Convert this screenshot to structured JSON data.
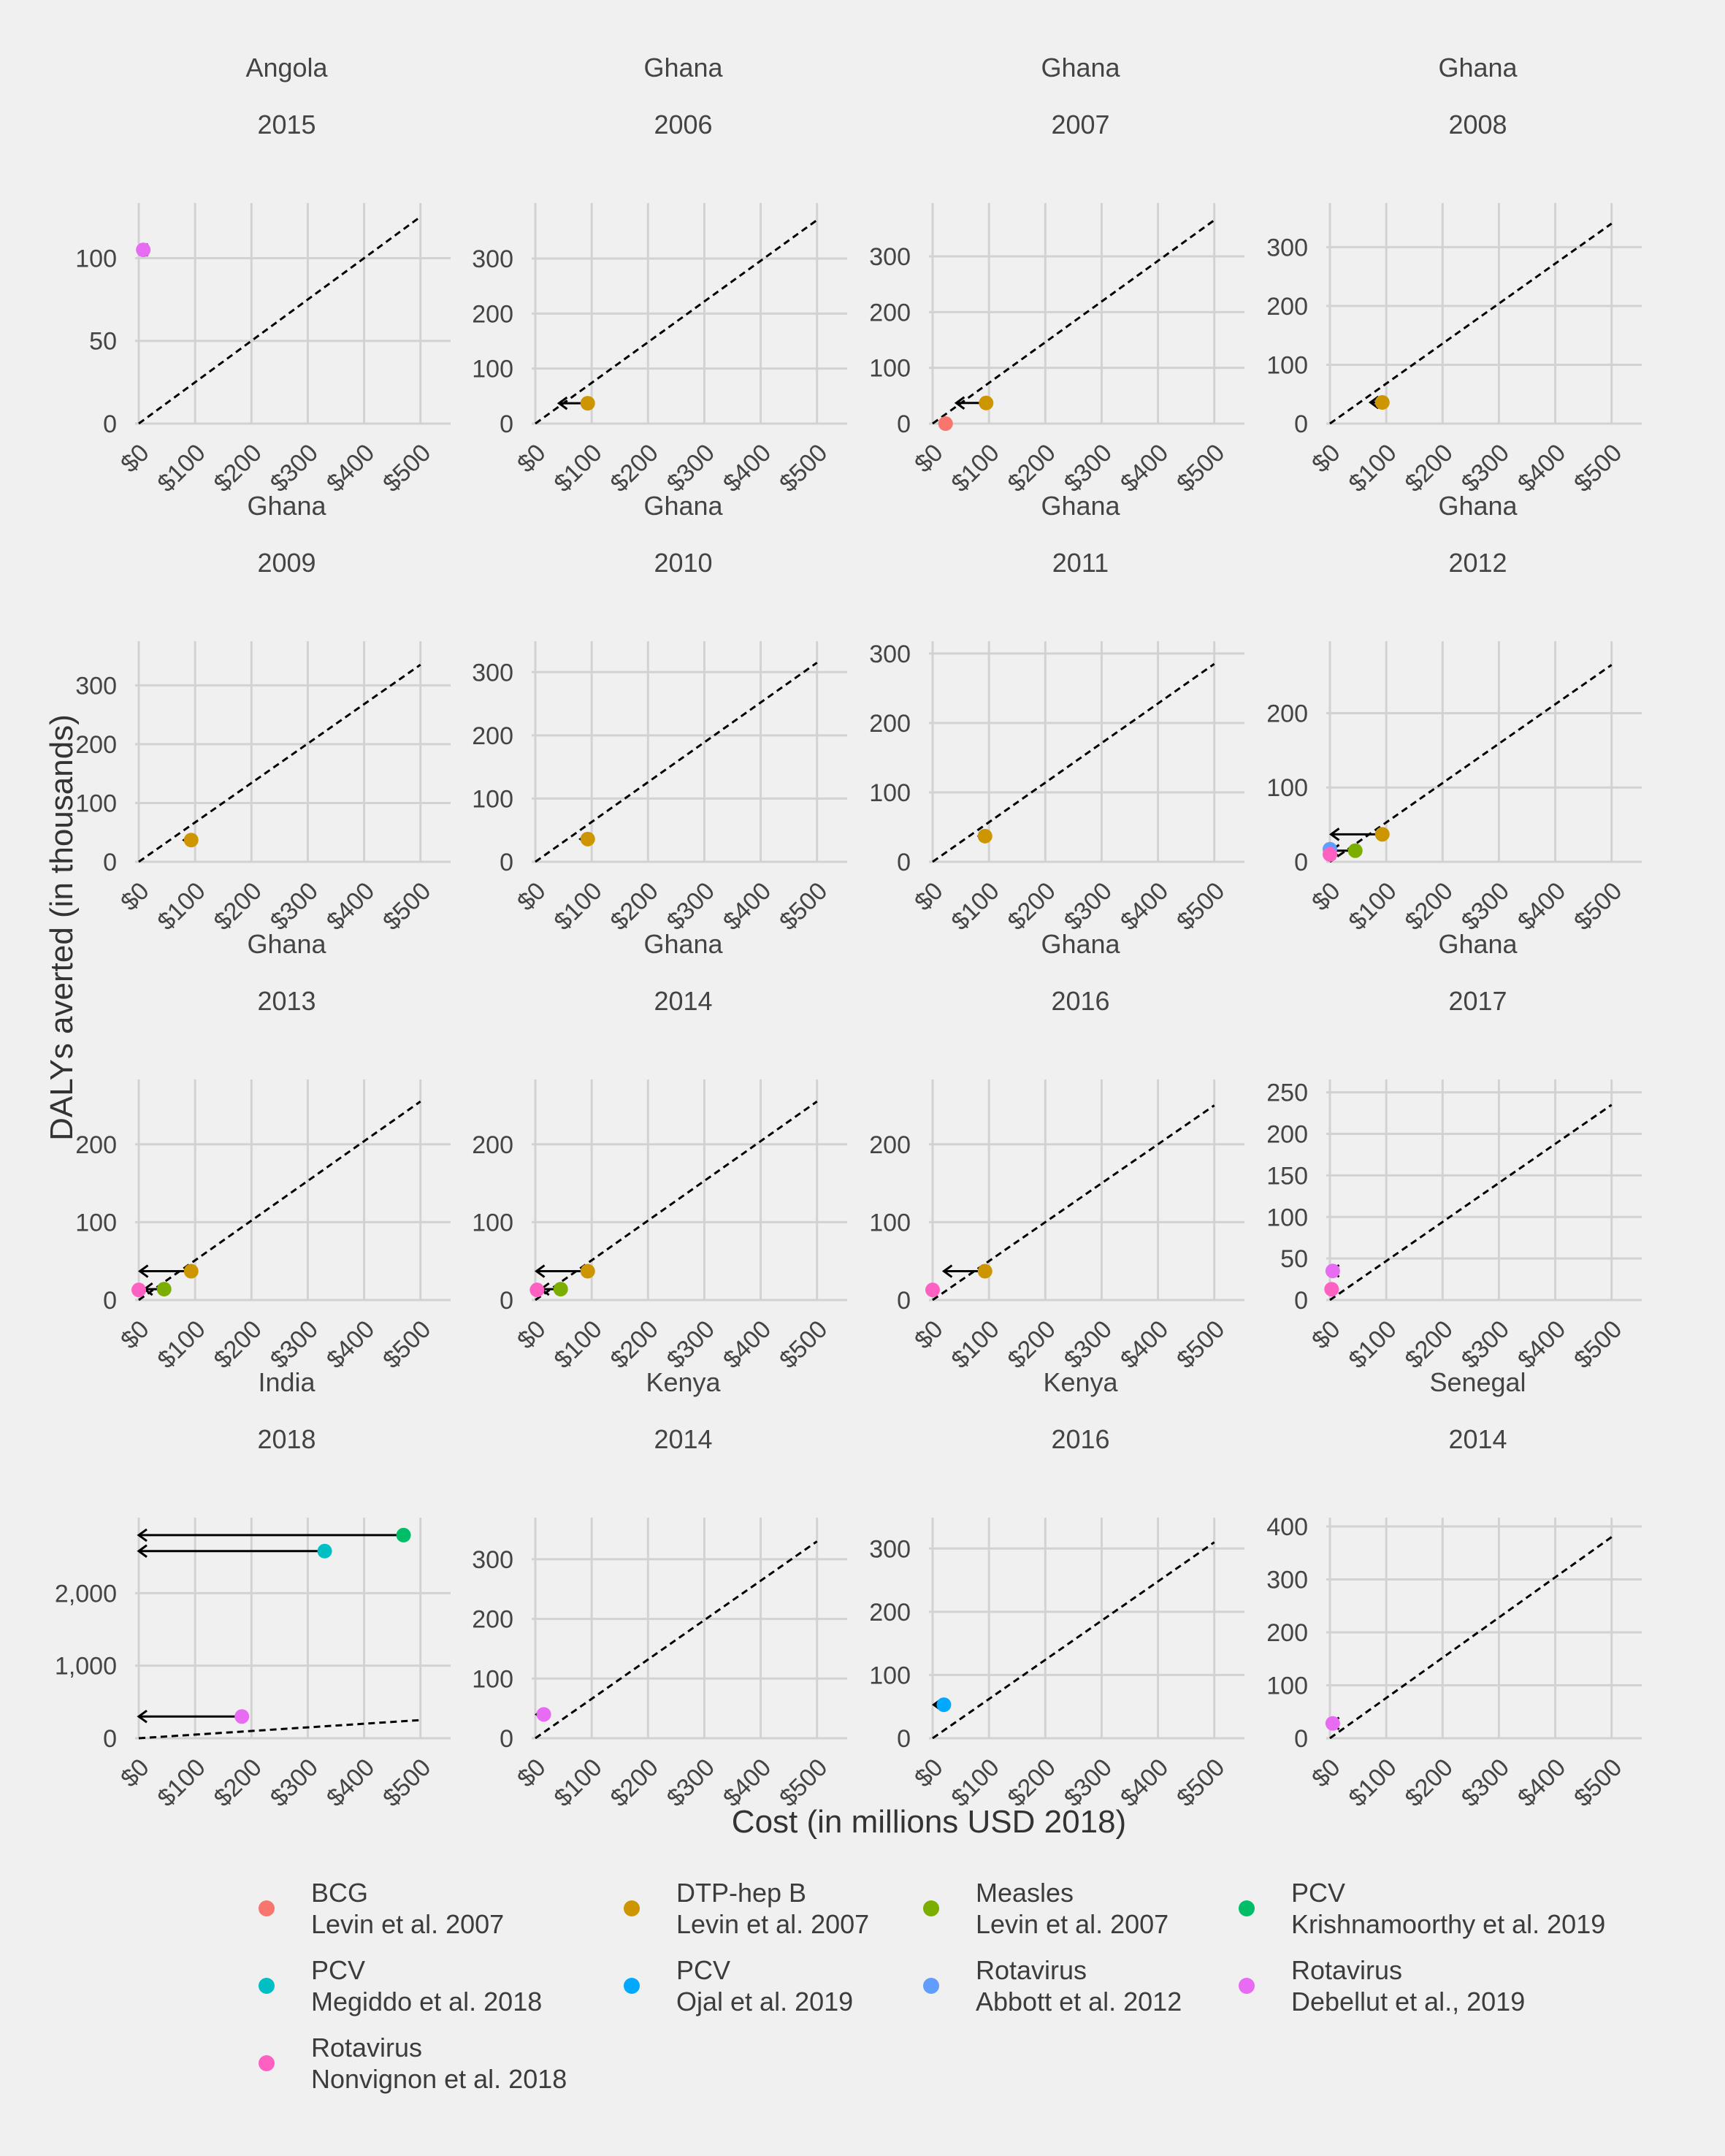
{
  "chart_data": {
    "type": "scatter",
    "xlabel": "Cost (in millions USD 2018)",
    "ylabel": "DALYs averted (in thousands)",
    "x_tick_labels": [
      "$0",
      "$100",
      "$200",
      "$300",
      "$400",
      "$500"
    ],
    "grid": true,
    "legend_position": "bottom",
    "series": [
      {
        "name": "BCG\nLevin et al. 2007",
        "color": "#F8766D"
      },
      {
        "name": "DTP-hep B\nLevin et al. 2007",
        "color": "#CD9600"
      },
      {
        "name": "Measles\nLevin et al. 2007",
        "color": "#7CAE00"
      },
      {
        "name": "PCV\nKrishnamoorthy et al. 2019",
        "color": "#00BE67"
      },
      {
        "name": "PCV\nMegiddo et al. 2018",
        "color": "#00BFC4"
      },
      {
        "name": "PCV\nOjal et al. 2019",
        "color": "#00A9FF"
      },
      {
        "name": "Rotavirus\nAbbott et al. 2012",
        "color": "#619CFF"
      },
      {
        "name": "Rotavirus\nDebellut et al., 2019",
        "color": "#E76BF3"
      },
      {
        "name": "Rotavirus\nNonvignon et al. 2018",
        "color": "#FF61C3"
      }
    ],
    "panels": [
      {
        "country": "Angola",
        "year": "2015",
        "xlim": [
          0,
          525
        ],
        "ylim": [
          0,
          128
        ],
        "yticks": [
          0,
          50,
          100
        ],
        "ytick_labels": [
          "0",
          "50",
          "100"
        ],
        "threshold_slope": 0.25,
        "points": [
          {
            "series": 7,
            "x": 8,
            "y": 105
          }
        ],
        "arrows": [
          {
            "x_from": 8,
            "x_to": 2,
            "y": 105
          }
        ]
      },
      {
        "country": "Ghana",
        "year": "2006",
        "xlim": [
          0,
          525
        ],
        "ylim": [
          0,
          385
        ],
        "yticks": [
          0,
          100,
          200,
          300
        ],
        "ytick_labels": [
          "0",
          "100",
          "200",
          "300"
        ],
        "threshold_slope": 0.74,
        "points": [
          {
            "series": 1,
            "x": 93,
            "y": 37
          }
        ],
        "arrows": [
          {
            "x_from": 93,
            "x_to": 42,
            "y": 37
          }
        ]
      },
      {
        "country": "Ghana",
        "year": "2007",
        "xlim": [
          0,
          525
        ],
        "ylim": [
          0,
          380
        ],
        "yticks": [
          0,
          100,
          200,
          300
        ],
        "ytick_labels": [
          "0",
          "100",
          "200",
          "300"
        ],
        "threshold_slope": 0.73,
        "points": [
          {
            "series": 0,
            "x": 23,
            "y": 0
          },
          {
            "series": 1,
            "x": 95,
            "y": 37
          }
        ],
        "arrows": [
          {
            "x_from": 95,
            "x_to": 42,
            "y": 37
          }
        ]
      },
      {
        "country": "Ghana",
        "year": "2008",
        "xlim": [
          0,
          525
        ],
        "ylim": [
          0,
          360
        ],
        "yticks": [
          0,
          100,
          200,
          300
        ],
        "ytick_labels": [
          "0",
          "100",
          "200",
          "300"
        ],
        "threshold_slope": 0.68,
        "points": [
          {
            "series": 1,
            "x": 93,
            "y": 36
          }
        ],
        "arrows": [
          {
            "x_from": 93,
            "x_to": 72,
            "y": 36
          }
        ]
      },
      {
        "country": "Ghana",
        "year": "2009",
        "xlim": [
          0,
          525
        ],
        "ylim": [
          0,
          360
        ],
        "yticks": [
          0,
          100,
          200,
          300
        ],
        "ytick_labels": [
          "0",
          "100",
          "200",
          "300"
        ],
        "threshold_slope": 0.67,
        "points": [
          {
            "series": 1,
            "x": 93,
            "y": 37
          }
        ],
        "arrows": [
          {
            "x_from": 93,
            "x_to": 80,
            "y": 37
          }
        ]
      },
      {
        "country": "Ghana",
        "year": "2010",
        "xlim": [
          0,
          525
        ],
        "ylim": [
          0,
          335
        ],
        "yticks": [
          0,
          100,
          200,
          300
        ],
        "ytick_labels": [
          "0",
          "100",
          "200",
          "300"
        ],
        "threshold_slope": 0.63,
        "points": [
          {
            "series": 1,
            "x": 93,
            "y": 36
          }
        ],
        "arrows": [
          {
            "x_from": 93,
            "x_to": 80,
            "y": 36
          }
        ]
      },
      {
        "country": "Ghana",
        "year": "2011",
        "xlim": [
          0,
          525
        ],
        "ylim": [
          0,
          305
        ],
        "yticks": [
          0,
          100,
          200,
          300
        ],
        "ytick_labels": [
          "0",
          "100",
          "200",
          "300"
        ],
        "threshold_slope": 0.57,
        "points": [
          {
            "series": 1,
            "x": 93,
            "y": 37
          }
        ],
        "arrows": [
          {
            "x_from": 93,
            "x_to": 82,
            "y": 37
          }
        ]
      },
      {
        "country": "Ghana",
        "year": "2012",
        "xlim": [
          0,
          525
        ],
        "ylim": [
          0,
          285
        ],
        "yticks": [
          0,
          100,
          200
        ],
        "ytick_labels": [
          "0",
          "100",
          "200"
        ],
        "threshold_slope": 0.53,
        "points": [
          {
            "series": 6,
            "x": 0,
            "y": 17
          },
          {
            "series": 8,
            "x": 0,
            "y": 10
          },
          {
            "series": 2,
            "x": 45,
            "y": 15
          },
          {
            "series": 1,
            "x": 93,
            "y": 37
          }
        ],
        "arrows": [
          {
            "x_from": 93,
            "x_to": 2,
            "y": 37
          },
          {
            "x_from": 45,
            "x_to": 2,
            "y": 15
          }
        ]
      },
      {
        "country": "Ghana",
        "year": "2013",
        "xlim": [
          0,
          525
        ],
        "ylim": [
          0,
          272
        ],
        "yticks": [
          0,
          100,
          200
        ],
        "ytick_labels": [
          "0",
          "100",
          "200"
        ],
        "threshold_slope": 0.51,
        "points": [
          {
            "series": 8,
            "x": 0,
            "y": 13
          },
          {
            "series": 2,
            "x": 45,
            "y": 14
          },
          {
            "series": 1,
            "x": 93,
            "y": 37
          }
        ],
        "arrows": [
          {
            "x_from": 93,
            "x_to": 2,
            "y": 37
          },
          {
            "x_from": 45,
            "x_to": 10,
            "y": 14
          }
        ]
      },
      {
        "country": "Ghana",
        "year": "2014",
        "xlim": [
          0,
          525
        ],
        "ylim": [
          0,
          272
        ],
        "yticks": [
          0,
          100,
          200
        ],
        "ytick_labels": [
          "0",
          "100",
          "200"
        ],
        "threshold_slope": 0.51,
        "points": [
          {
            "series": 8,
            "x": 3,
            "y": 13
          },
          {
            "series": 2,
            "x": 45,
            "y": 14
          },
          {
            "series": 1,
            "x": 93,
            "y": 37
          }
        ],
        "arrows": [
          {
            "x_from": 93,
            "x_to": 2,
            "y": 37
          },
          {
            "x_from": 45,
            "x_to": 10,
            "y": 14
          }
        ]
      },
      {
        "country": "Ghana",
        "year": "2016",
        "xlim": [
          0,
          525
        ],
        "ylim": [
          0,
          272
        ],
        "yticks": [
          0,
          100,
          200
        ],
        "ytick_labels": [
          "0",
          "100",
          "200"
        ],
        "threshold_slope": 0.5,
        "points": [
          {
            "series": 8,
            "x": 0,
            "y": 13
          },
          {
            "series": 1,
            "x": 93,
            "y": 37
          }
        ],
        "arrows": [
          {
            "x_from": 93,
            "x_to": 20,
            "y": 37
          }
        ]
      },
      {
        "country": "Ghana",
        "year": "2017",
        "xlim": [
          0,
          525
        ],
        "ylim": [
          0,
          255
        ],
        "yticks": [
          0,
          50,
          100,
          150,
          200,
          250
        ],
        "ytick_labels": [
          "0",
          "50",
          "100",
          "150",
          "200",
          "250"
        ],
        "threshold_slope": 0.47,
        "points": [
          {
            "series": 7,
            "x": 5,
            "y": 35
          },
          {
            "series": 8,
            "x": 3,
            "y": 13
          }
        ],
        "arrows": [
          {
            "x_from": 5,
            "x_to": 2,
            "y": 35
          }
        ]
      },
      {
        "country": "India",
        "year": "2018",
        "xlim": [
          0,
          525
        ],
        "ylim": [
          0,
          2920
        ],
        "yticks": [
          0,
          1000,
          2000
        ],
        "ytick_labels": [
          "0",
          "1,000",
          "2,000"
        ],
        "threshold_slope": 0.5,
        "points": [
          {
            "series": 3,
            "x": 470,
            "y": 2800
          },
          {
            "series": 4,
            "x": 330,
            "y": 2580
          },
          {
            "series": 7,
            "x": 183,
            "y": 300
          }
        ],
        "arrows": [
          {
            "x_from": 470,
            "x_to": 0,
            "y": 2800
          },
          {
            "x_from": 330,
            "x_to": 0,
            "y": 2580
          },
          {
            "x_from": 183,
            "x_to": 0,
            "y": 300
          }
        ]
      },
      {
        "country": "Kenya",
        "year": "2014",
        "xlim": [
          0,
          525
        ],
        "ylim": [
          0,
          355
        ],
        "yticks": [
          0,
          100,
          200,
          300
        ],
        "ytick_labels": [
          "0",
          "100",
          "200",
          "300"
        ],
        "threshold_slope": 0.66,
        "points": [
          {
            "series": 7,
            "x": 15,
            "y": 40
          }
        ],
        "arrows": [
          {
            "x_from": 15,
            "x_to": 2,
            "y": 40
          }
        ]
      },
      {
        "country": "Kenya",
        "year": "2016",
        "xlim": [
          0,
          525
        ],
        "ylim": [
          0,
          335
        ],
        "yticks": [
          0,
          100,
          200,
          300
        ],
        "ytick_labels": [
          "0",
          "100",
          "200",
          "300"
        ],
        "threshold_slope": 0.62,
        "points": [
          {
            "series": 5,
            "x": 20,
            "y": 53
          }
        ],
        "arrows": [
          {
            "x_from": 20,
            "x_to": 2,
            "y": 53
          }
        ]
      },
      {
        "country": "Senegal",
        "year": "2014",
        "xlim": [
          0,
          525
        ],
        "ylim": [
          0,
          400
        ],
        "yticks": [
          0,
          100,
          200,
          300,
          400
        ],
        "ytick_labels": [
          "0",
          "100",
          "200",
          "300",
          "400"
        ],
        "threshold_slope": 0.76,
        "points": [
          {
            "series": 7,
            "x": 5,
            "y": 28
          }
        ],
        "arrows": [
          {
            "x_from": 5,
            "x_to": 2,
            "y": 28
          }
        ]
      }
    ]
  }
}
